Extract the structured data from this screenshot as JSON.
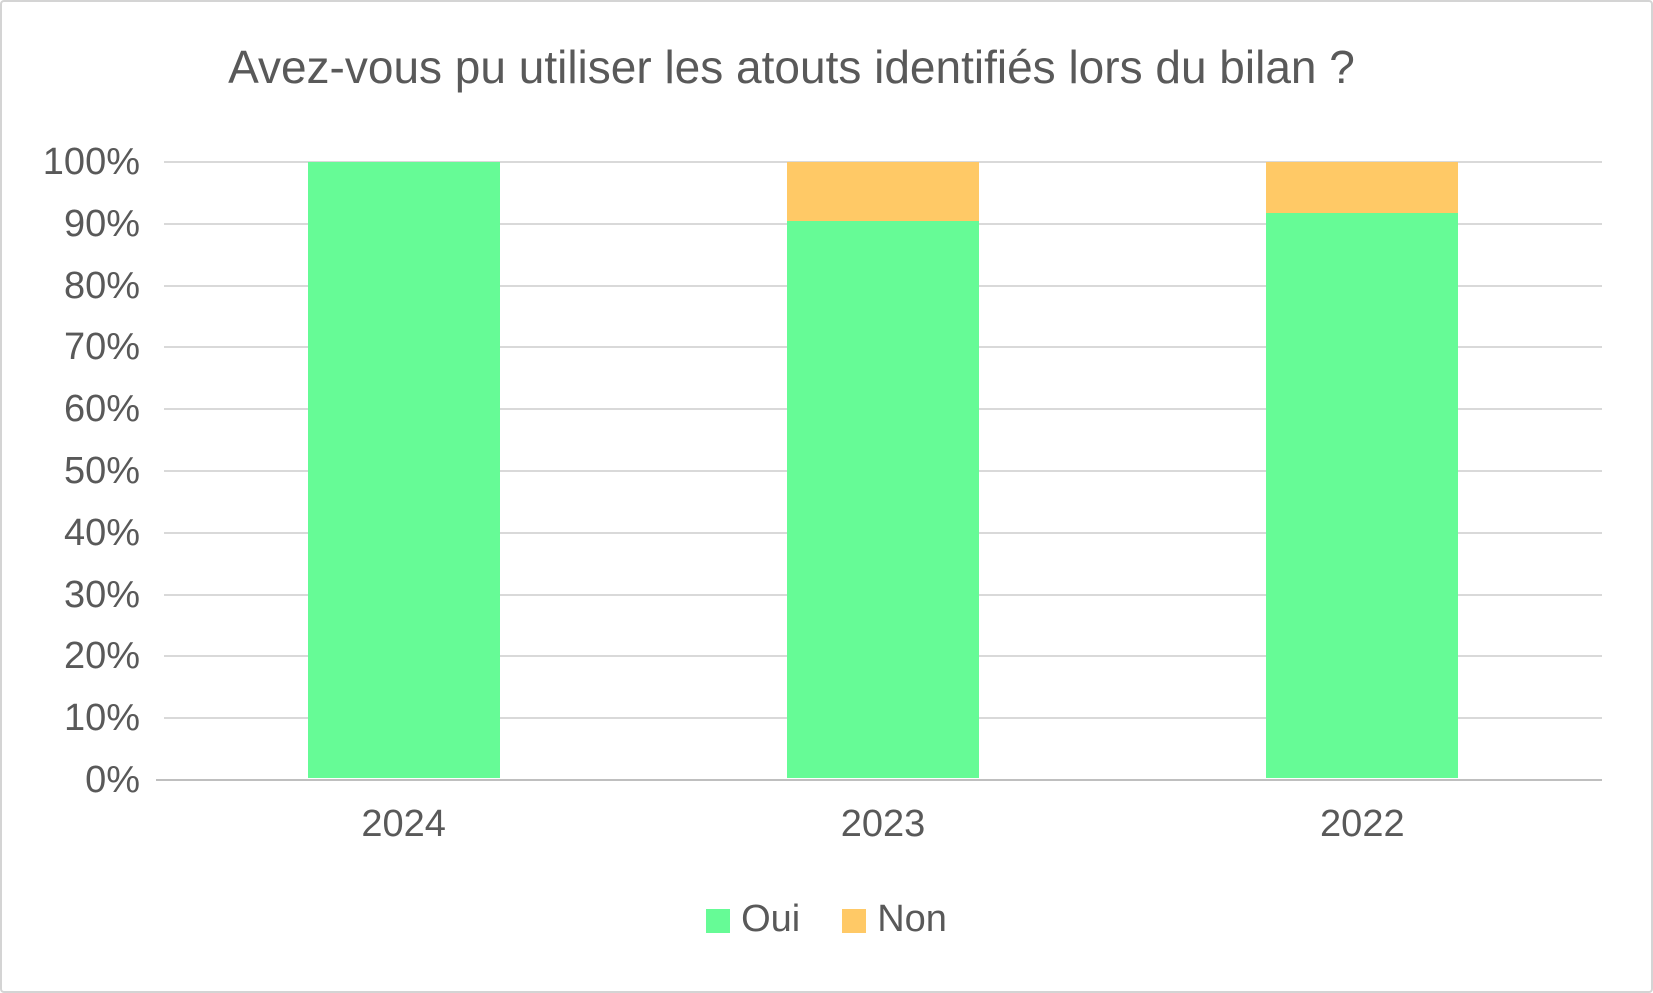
{
  "chart": {
    "colors": {
      "title_text": "#595959",
      "axis_text": "#595959",
      "gridline": "#d9d9d9",
      "axis_line": "#bfbfbf",
      "background": "#ffffff",
      "border": "#d4d4d4"
    }
  },
  "chart_data": {
    "type": "bar",
    "subtype": "stacked-100-percent-column",
    "title": "Avez-vous pu utiliser les atouts identifiés lors du bilan ?",
    "categories": [
      "2024",
      "2023",
      "2022"
    ],
    "series": [
      {
        "name": "Oui",
        "color": "#66fb96",
        "values": [
          100,
          90.5,
          91.7
        ]
      },
      {
        "name": "Non",
        "color": "#ffc966",
        "values": [
          0,
          9.5,
          8.3
        ]
      }
    ],
    "xlabel": "",
    "ylabel": "",
    "ylim": [
      0,
      100
    ],
    "y_ticks": [
      "0%",
      "10%",
      "20%",
      "30%",
      "40%",
      "50%",
      "60%",
      "70%",
      "80%",
      "90%",
      "100%"
    ],
    "grid": true,
    "legend_position": "bottom",
    "legend_labels": [
      "Oui",
      "Non"
    ]
  }
}
